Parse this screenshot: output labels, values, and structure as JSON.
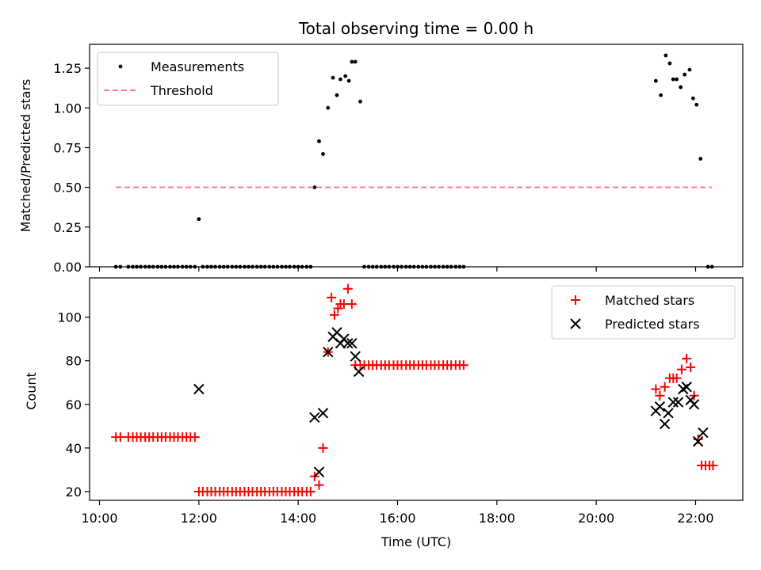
{
  "title": "Total observing time = 0.00 h",
  "chart_data": [
    {
      "type": "scatter",
      "ylabel": "Matched/Predicted stars",
      "xlabel": "",
      "xlim": [
        9.8,
        22.95
      ],
      "ylim": [
        0,
        1.4
      ],
      "yticks": [
        0.0,
        0.25,
        0.5,
        0.75,
        1.0,
        1.25
      ],
      "ytick_labels": [
        "0.00",
        "0.25",
        "0.50",
        "0.75",
        "1.00",
        "1.25"
      ],
      "legend_position": "top-left",
      "series": [
        {
          "name": "Measurements",
          "kind": "dot",
          "color": "#000000",
          "x": [
            10.33,
            10.42,
            10.58,
            10.67,
            10.75,
            10.83,
            10.92,
            11.0,
            11.08,
            11.17,
            11.25,
            11.33,
            11.42,
            11.5,
            11.58,
            11.67,
            11.75,
            11.83,
            11.92,
            12.0,
            12.08,
            12.17,
            12.25,
            12.33,
            12.42,
            12.5,
            12.58,
            12.67,
            12.75,
            12.83,
            12.92,
            13.0,
            13.08,
            13.17,
            13.25,
            13.33,
            13.42,
            13.5,
            13.58,
            13.67,
            13.75,
            13.83,
            13.92,
            14.0,
            14.08,
            14.17,
            14.25,
            14.33,
            14.42,
            14.5,
            14.6,
            14.7,
            14.78,
            14.85,
            14.95,
            15.02,
            15.08,
            15.15,
            15.25,
            15.33,
            15.42,
            15.5,
            15.58,
            15.67,
            15.75,
            15.83,
            15.92,
            16.0,
            16.08,
            16.17,
            16.25,
            16.33,
            16.42,
            16.5,
            16.58,
            16.67,
            16.75,
            16.83,
            16.92,
            17.0,
            17.08,
            17.17,
            17.25,
            17.33,
            21.2,
            21.3,
            21.4,
            21.48,
            21.55,
            21.62,
            21.7,
            21.78,
            21.88,
            21.95,
            22.02,
            22.1,
            22.25,
            22.33
          ],
          "y": [
            0,
            0,
            0,
            0,
            0,
            0,
            0,
            0,
            0,
            0,
            0,
            0,
            0,
            0,
            0,
            0,
            0,
            0,
            0,
            0.3,
            0,
            0,
            0,
            0,
            0,
            0,
            0,
            0,
            0,
            0,
            0,
            0,
            0,
            0,
            0,
            0,
            0,
            0,
            0,
            0,
            0,
            0,
            0,
            0,
            0,
            0,
            0,
            0.5,
            0.79,
            0.71,
            1.0,
            1.19,
            1.08,
            1.18,
            1.2,
            1.17,
            1.29,
            1.29,
            1.04,
            0,
            0,
            0,
            0,
            0,
            0,
            0,
            0,
            0,
            0,
            0,
            0,
            0,
            0,
            0,
            0,
            0,
            0,
            0,
            0,
            0,
            0,
            0,
            0,
            0,
            1.17,
            1.08,
            1.33,
            1.28,
            1.18,
            1.18,
            1.13,
            1.21,
            1.24,
            1.06,
            1.02,
            0.68,
            0,
            0
          ]
        },
        {
          "name": "Threshold",
          "kind": "dashed-line",
          "color": "#ff7f7f",
          "x": [
            10.33,
            22.33
          ],
          "y": [
            0.5,
            0.5
          ]
        }
      ]
    },
    {
      "type": "scatter",
      "ylabel": "Count",
      "xlabel": "Time (UTC)",
      "xlim": [
        9.8,
        22.95
      ],
      "ylim": [
        16,
        118
      ],
      "yticks": [
        20,
        40,
        60,
        80,
        100
      ],
      "ytick_labels": [
        "20",
        "40",
        "60",
        "80",
        "100"
      ],
      "xticks": [
        10,
        12,
        14,
        16,
        18,
        20,
        22
      ],
      "xtick_labels": [
        "10:00",
        "12:00",
        "14:00",
        "16:00",
        "18:00",
        "20:00",
        "22:00"
      ],
      "legend_position": "top-right",
      "series": [
        {
          "name": "Matched stars",
          "kind": "plus",
          "color": "#ff0000",
          "x": [
            10.33,
            10.42,
            10.58,
            10.67,
            10.75,
            10.83,
            10.92,
            11.0,
            11.08,
            11.17,
            11.25,
            11.33,
            11.42,
            11.5,
            11.58,
            11.67,
            11.75,
            11.83,
            11.92,
            12.0,
            12.08,
            12.17,
            12.25,
            12.33,
            12.42,
            12.5,
            12.58,
            12.67,
            12.75,
            12.83,
            12.92,
            13.0,
            13.08,
            13.17,
            13.25,
            13.33,
            13.42,
            13.5,
            13.58,
            13.67,
            13.75,
            13.83,
            13.92,
            14.0,
            14.08,
            14.17,
            14.25,
            14.33,
            14.42,
            14.5,
            14.6,
            14.67,
            14.73,
            14.8,
            14.85,
            14.92,
            15.0,
            15.08,
            15.15,
            15.25,
            15.33,
            15.42,
            15.5,
            15.58,
            15.67,
            15.75,
            15.83,
            15.92,
            16.0,
            16.08,
            16.17,
            16.25,
            16.33,
            16.42,
            16.5,
            16.58,
            16.67,
            16.75,
            16.83,
            16.92,
            17.0,
            17.08,
            17.17,
            17.25,
            17.33,
            21.2,
            21.28,
            21.38,
            21.48,
            21.55,
            21.62,
            21.72,
            21.82,
            21.9,
            21.97,
            22.05,
            22.12,
            22.2,
            22.28,
            22.35
          ],
          "y": [
            45,
            45,
            45,
            45,
            45,
            45,
            45,
            45,
            45,
            45,
            45,
            45,
            45,
            45,
            45,
            45,
            45,
            45,
            45,
            20,
            20,
            20,
            20,
            20,
            20,
            20,
            20,
            20,
            20,
            20,
            20,
            20,
            20,
            20,
            20,
            20,
            20,
            20,
            20,
            20,
            20,
            20,
            20,
            20,
            20,
            20,
            20,
            27,
            23,
            40,
            84,
            109,
            101,
            104,
            106,
            106,
            113,
            106,
            78,
            78,
            78,
            78,
            78,
            78,
            78,
            78,
            78,
            78,
            78,
            78,
            78,
            78,
            78,
            78,
            78,
            78,
            78,
            78,
            78,
            78,
            78,
            78,
            78,
            78,
            78,
            67,
            64,
            68,
            72,
            72,
            72,
            76,
            81,
            77,
            64,
            44,
            32,
            32,
            32,
            32
          ]
        },
        {
          "name": "Predicted stars",
          "kind": "x",
          "color": "#000000",
          "x": [
            12.0,
            14.33,
            14.42,
            14.5,
            14.6,
            14.7,
            14.78,
            14.85,
            14.92,
            15.0,
            15.08,
            15.15,
            15.22,
            21.2,
            21.28,
            21.38,
            21.45,
            21.55,
            21.65,
            21.75,
            21.82,
            21.9,
            21.97,
            22.05,
            22.15
          ],
          "y": [
            67,
            54,
            29,
            56,
            84,
            91,
            93,
            88,
            90,
            88,
            88,
            82,
            75,
            57,
            59,
            51,
            56,
            61,
            61,
            67,
            68,
            62,
            60,
            43,
            47
          ]
        }
      ]
    }
  ]
}
